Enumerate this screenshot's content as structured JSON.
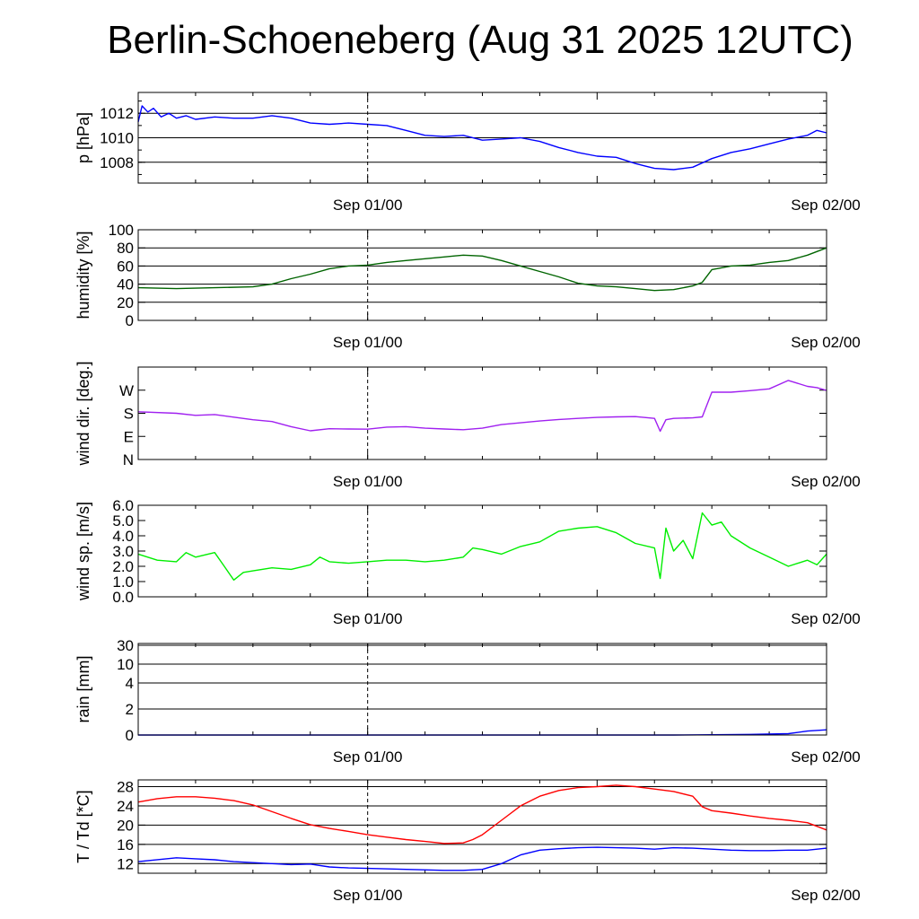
{
  "title": "Berlin-Schoeneberg (Aug 31 2025 12UTC)",
  "colors": {
    "pressure": "#0000ff",
    "humidity": "#006400",
    "wind_direction": "#a020f0",
    "wind_speed": "#00ee00",
    "rain": "#0000ff",
    "temperature": "#ff0000",
    "dewpoint": "#0000ff"
  },
  "chart_data": [
    {
      "type": "line",
      "ylabel": "p [hPa]",
      "x_tick_labels": [
        "Sep 01/00",
        "Sep 02/00"
      ],
      "x_range_hours": [
        0,
        36
      ],
      "ylim": [
        1006.3,
        1013.7
      ],
      "y_ticks": [
        1008,
        1010,
        1012
      ],
      "grid": true,
      "series": [
        {
          "color_key": "pressure",
          "x": [
            0,
            0.2,
            0.5,
            0.8,
            1.2,
            1.6,
            2.0,
            2.5,
            3.0,
            4.0,
            5.0,
            6.0,
            7.0,
            8.0,
            9.0,
            10.0,
            11.0,
            12.0,
            13.0,
            14.0,
            15.0,
            16.0,
            17.0,
            18.0,
            19.0,
            20.0,
            21.0,
            22.0,
            23.0,
            24.0,
            25.0,
            26.0,
            26.5,
            27.0,
            28.0,
            29.0,
            30.0,
            31.0,
            32.0,
            33.0,
            34.0,
            35.0,
            35.5,
            36.0
          ],
          "values": [
            1011.3,
            1012.6,
            1012.1,
            1012.4,
            1011.7,
            1012.0,
            1011.6,
            1011.8,
            1011.5,
            1011.7,
            1011.6,
            1011.6,
            1011.8,
            1011.6,
            1011.2,
            1011.1,
            1011.2,
            1011.1,
            1011.0,
            1010.6,
            1010.2,
            1010.1,
            1010.2,
            1009.8,
            1009.9,
            1010.0,
            1009.7,
            1009.2,
            1008.8,
            1008.5,
            1008.4,
            1007.9,
            1007.7,
            1007.5,
            1007.4,
            1007.6,
            1008.3,
            1008.8,
            1009.1,
            1009.5,
            1009.9,
            1010.2,
            1010.6,
            1010.4
          ]
        }
      ]
    },
    {
      "type": "line",
      "ylabel": "humidity [%]",
      "x_tick_labels": [
        "Sep 01/00",
        "Sep 02/00"
      ],
      "x_range_hours": [
        0,
        36
      ],
      "ylim": [
        0,
        100
      ],
      "y_ticks": [
        0,
        20,
        40,
        60,
        80,
        100
      ],
      "grid": true,
      "series": [
        {
          "color_key": "humidity",
          "x": [
            0,
            2,
            4,
            6,
            7,
            8,
            9,
            10,
            11,
            12,
            13,
            14,
            15,
            16,
            17,
            18,
            19,
            20,
            21,
            22,
            23,
            24,
            25,
            26,
            27,
            28,
            29,
            29.5,
            30,
            31,
            32,
            33,
            34,
            35,
            36
          ],
          "values": [
            36,
            35,
            36,
            37,
            40,
            46,
            51,
            57,
            60,
            61,
            64,
            66,
            68,
            70,
            72,
            71,
            66,
            60,
            54,
            48,
            41,
            38,
            37,
            35,
            33,
            34,
            38,
            42,
            56,
            60,
            61,
            64,
            66,
            72,
            80
          ]
        }
      ]
    },
    {
      "type": "line",
      "ylabel": "wind dir. [deg.]",
      "x_tick_labels": [
        "Sep 01/00",
        "Sep 02/00"
      ],
      "x_range_hours": [
        0,
        36
      ],
      "ylim": [
        0,
        360
      ],
      "y_ticks": [
        0,
        90,
        180,
        270
      ],
      "y_tick_labels": [
        "N",
        "E",
        "S",
        "W"
      ],
      "grid": false,
      "series": [
        {
          "color_key": "wind_direction",
          "x": [
            0,
            2,
            3,
            4,
            5,
            6,
            7,
            8,
            9,
            10,
            11,
            12,
            13,
            14,
            15,
            16,
            17,
            18,
            19,
            20,
            21,
            22,
            23,
            24,
            25,
            26,
            27,
            27.3,
            27.6,
            28,
            29,
            29.5,
            30,
            31,
            32,
            33,
            34,
            35,
            35.5,
            36
          ],
          "values": [
            186,
            180,
            172,
            175,
            165,
            155,
            148,
            128,
            112,
            120,
            119,
            118,
            126,
            128,
            122,
            119,
            116,
            122,
            136,
            143,
            150,
            156,
            160,
            164,
            166,
            167,
            160,
            110,
            155,
            160,
            162,
            166,
            262,
            262,
            268,
            275,
            308,
            285,
            280,
            269
          ]
        }
      ]
    },
    {
      "type": "line",
      "ylabel": "wind sp. [m/s]",
      "x_tick_labels": [
        "Sep 01/00",
        "Sep 02/00"
      ],
      "x_range_hours": [
        0,
        36
      ],
      "ylim": [
        0,
        6
      ],
      "y_ticks": [
        0.0,
        1.0,
        2.0,
        3.0,
        4.0,
        5.0,
        6.0
      ],
      "grid": false,
      "series": [
        {
          "color_key": "wind_speed",
          "x": [
            0,
            1,
            2,
            2.5,
            3,
            4,
            4.5,
            5,
            5.5,
            6,
            7,
            8,
            9,
            9.5,
            10,
            11,
            12,
            13,
            14,
            15,
            16,
            17,
            17.5,
            18,
            19,
            20,
            21,
            22,
            23,
            24,
            25,
            26,
            27,
            27.3,
            27.6,
            28,
            28.5,
            29,
            29.5,
            30,
            30.5,
            31,
            32,
            33,
            34,
            35,
            35.5,
            36
          ],
          "values": [
            2.8,
            2.4,
            2.3,
            2.9,
            2.6,
            2.9,
            2.0,
            1.1,
            1.6,
            1.7,
            1.9,
            1.8,
            2.1,
            2.6,
            2.3,
            2.2,
            2.3,
            2.4,
            2.4,
            2.3,
            2.4,
            2.6,
            3.2,
            3.1,
            2.8,
            3.3,
            3.6,
            4.3,
            4.5,
            4.6,
            4.2,
            3.5,
            3.2,
            1.2,
            4.5,
            3.0,
            3.7,
            2.5,
            5.5,
            4.7,
            4.9,
            4.0,
            3.2,
            2.6,
            2.0,
            2.4,
            2.1,
            2.8
          ]
        }
      ]
    },
    {
      "type": "line",
      "ylabel": "rain [mm]",
      "x_tick_labels": [
        "Sep 01/00",
        "Sep 02/00"
      ],
      "x_range_hours": [
        0,
        36
      ],
      "y_scale": "nonlinear",
      "y_ticks": [
        0,
        2,
        4,
        10,
        30
      ],
      "grid": true,
      "series": [
        {
          "color_key": "rain",
          "x": [
            0,
            28,
            30,
            32,
            34,
            35,
            36
          ],
          "values": [
            0,
            0,
            0.02,
            0.05,
            0.1,
            0.3,
            0.4
          ]
        }
      ]
    },
    {
      "type": "line",
      "ylabel": "T / Td [*C]",
      "x_tick_labels": [
        "Sep 01/00",
        "Sep 02/00"
      ],
      "x_range_hours": [
        0,
        36
      ],
      "ylim": [
        10,
        29.4
      ],
      "y_ticks": [
        12,
        16,
        20,
        24,
        28
      ],
      "grid": true,
      "series": [
        {
          "color_key": "temperature",
          "x": [
            0,
            1,
            2,
            3,
            4,
            5,
            6,
            7,
            8,
            9,
            10,
            11,
            12,
            13,
            14,
            15,
            16,
            17,
            17.5,
            18,
            19,
            20,
            21,
            22,
            23,
            24,
            25,
            26,
            27,
            28,
            29,
            29.5,
            30,
            31,
            32,
            33,
            34,
            35,
            36
          ],
          "values": [
            24.8,
            25.5,
            25.9,
            25.9,
            25.6,
            25.1,
            24.2,
            22.8,
            21.4,
            20.1,
            19.3,
            18.7,
            18.0,
            17.5,
            17.0,
            16.6,
            16.2,
            16.3,
            17.0,
            18.0,
            21.0,
            24.0,
            26.0,
            27.2,
            27.8,
            28.0,
            28.3,
            28.0,
            27.5,
            27.0,
            26.0,
            23.8,
            23.0,
            22.5,
            21.9,
            21.4,
            21.0,
            20.5,
            19.0
          ]
        },
        {
          "color_key": "dewpoint",
          "x": [
            0,
            2,
            3,
            4,
            5,
            6,
            7,
            8,
            9,
            10,
            11,
            12,
            14,
            16,
            17,
            18,
            19,
            20,
            21,
            22,
            23,
            24,
            25,
            26,
            27,
            28,
            29,
            30,
            31,
            32,
            33,
            34,
            35,
            36
          ],
          "values": [
            12.4,
            13.2,
            13.0,
            12.8,
            12.4,
            12.2,
            12.0,
            11.8,
            11.9,
            11.3,
            11.1,
            11.0,
            10.8,
            10.6,
            10.6,
            10.8,
            12.0,
            13.8,
            14.8,
            15.1,
            15.3,
            15.4,
            15.3,
            15.2,
            15.0,
            15.3,
            15.2,
            15.0,
            14.8,
            14.7,
            14.7,
            14.8,
            14.8,
            15.2
          ]
        }
      ]
    }
  ]
}
